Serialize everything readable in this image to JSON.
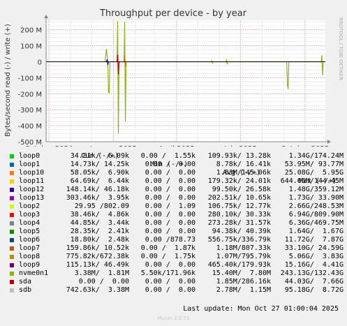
{
  "chart_data": {
    "type": "line",
    "title": "Throughput per device - by year",
    "ylabel": "Bytes/second read (-) / write (+)",
    "side_label": "RRDTOOL / TOBI OETIKER",
    "ylim": [
      -500000000,
      260000000
    ],
    "yticks": [
      {
        "v": 200000000,
        "label": "200 M"
      },
      {
        "v": 100000000,
        "label": "100 M"
      },
      {
        "v": 0,
        "label": "0"
      },
      {
        "v": -100000000,
        "label": "-100 M"
      },
      {
        "v": -200000000,
        "label": "-200 M"
      },
      {
        "v": -300000000,
        "label": "-300 M"
      },
      {
        "v": -400000000,
        "label": "-400 M"
      },
      {
        "v": -500000000,
        "label": "-500 M"
      }
    ],
    "x_range": [
      "2024-09-27",
      "2025-10-30"
    ],
    "xticks": [
      {
        "date": "2024-10-01",
        "label": "October 2024"
      },
      {
        "date": "2025-01-01",
        "label": "January 2025"
      },
      {
        "date": "2025-04-01",
        "label": "April 2025"
      },
      {
        "date": "2025-07-01",
        "label": "July 2025"
      },
      {
        "date": "2025-10-01",
        "label": "October 2025"
      }
    ],
    "grid": true,
    "series": [
      {
        "name": "nvme0n1",
        "color": "#8fb31d",
        "points": [
          [
            "2024-12-20",
            0
          ],
          [
            "2024-12-22",
            80000000
          ],
          [
            "2024-12-24",
            0
          ],
          [
            "2024-12-25",
            -190000000
          ],
          [
            "2024-12-26",
            -195000000
          ],
          [
            "2024-12-27",
            0
          ],
          [
            "2025-01-06",
            0
          ],
          [
            "2025-01-07",
            255000000
          ],
          [
            "2025-01-08",
            -450000000
          ],
          [
            "2025-01-09",
            0
          ],
          [
            "2025-01-16",
            0
          ],
          [
            "2025-01-17",
            250000000
          ],
          [
            "2025-01-18",
            -375000000
          ],
          [
            "2025-01-19",
            0
          ],
          [
            "2025-05-20",
            0
          ],
          [
            "2025-05-21",
            6000000
          ],
          [
            "2025-05-22",
            -8000000
          ],
          [
            "2025-05-23",
            0
          ],
          [
            "2025-06-10",
            0
          ],
          [
            "2025-06-11",
            12000000
          ],
          [
            "2025-06-12",
            -15000000
          ],
          [
            "2025-06-13",
            0
          ],
          [
            "2025-09-05",
            0
          ],
          [
            "2025-09-06",
            -145000000
          ],
          [
            "2025-09-07",
            -170000000
          ],
          [
            "2025-09-08",
            0
          ],
          [
            "2025-10-24",
            0
          ],
          [
            "2025-10-25",
            40000000
          ],
          [
            "2025-10-26",
            -85000000
          ],
          [
            "2025-10-27",
            0
          ]
        ]
      },
      {
        "name": "loop3",
        "color": "#cc0000",
        "points": [
          [
            "2025-01-06",
            0
          ],
          [
            "2025-01-07",
            45000000
          ],
          [
            "2025-01-08",
            -80000000
          ],
          [
            "2025-01-09",
            0
          ]
        ]
      },
      {
        "name": "loop8",
        "color": "#cc7a00",
        "points": [
          [
            "2025-01-16",
            0
          ],
          [
            "2025-01-17",
            40000000
          ],
          [
            "2025-01-18",
            -30000000
          ],
          [
            "2025-01-19",
            0
          ]
        ]
      },
      {
        "name": "loop12",
        "color": "#1a00cc",
        "points": [
          [
            "2024-12-22",
            0
          ],
          [
            "2024-12-23",
            15000000
          ],
          [
            "2024-12-24",
            -20000000
          ],
          [
            "2024-12-25",
            0
          ]
        ]
      }
    ]
  },
  "legend": {
    "headers": {
      "cur": "Cur (-/+)",
      "min": "Min (-/+)",
      "avg": "Avg (-/+)",
      "max": "Max (-/+)"
    },
    "rows": [
      {
        "name": "loop0",
        "color": "#00cc00",
        "cur": "34.81k/  6.09k",
        "min": "0.00 /  1.55k",
        "avg": "109.93k/ 13.28k",
        "max": "1.34G/174.24M"
      },
      {
        "name": "loop1",
        "color": "#0066b3",
        "cur": "14.73k/ 14.25k",
        "min": "0.00 /  0.00",
        "avg": "8.78k/ 16.41k",
        "max": "53.95M/ 93.77M"
      },
      {
        "name": "loop10",
        "color": "#ff8000",
        "cur": "58.05k/  6.90k",
        "min": "0.00 /  0.00",
        "avg": "1.63M/145.06k",
        "max": "25.08G/  5.95G"
      },
      {
        "name": "loop11",
        "color": "#ffcc00",
        "cur": "64.69k/  6.44k",
        "min": "0.00 /  0.00",
        "avg": "179.32k/ 24.01k",
        "max": "644.66M/144.45M"
      },
      {
        "name": "loop12",
        "color": "#330099",
        "cur": "148.14k/ 46.18k",
        "min": "0.00 /  0.00",
        "avg": "99.50k/ 26.58k",
        "max": "1.48G/359.12M"
      },
      {
        "name": "loop13",
        "color": "#990099",
        "cur": "303.46k/  3.95k",
        "min": "0.00 /  0.00",
        "avg": "202.51k/ 10.65k",
        "max": "1.73G/ 33.90M"
      },
      {
        "name": "loop2",
        "color": "#ccff00",
        "cur": "29.95 /802.09",
        "min": "0.00 /  1.09",
        "avg": "106.75k/ 12.77k",
        "max": "2.66G/248.53M"
      },
      {
        "name": "loop3",
        "color": "#ff0000",
        "cur": "38.46k/  4.86k",
        "min": "0.00 /  0.00",
        "avg": "280.10k/ 30.33k",
        "max": "6.94G/809.90M"
      },
      {
        "name": "loop4",
        "color": "#808080",
        "cur": "44.85k/  3.44k",
        "min": "0.00 /  0.00",
        "avg": "273.28k/ 31.57k",
        "max": "6.36G/469.75M"
      },
      {
        "name": "loop5",
        "color": "#008f00",
        "cur": "28.35k/  2.41k",
        "min": "0.00 /  0.00",
        "avg": "94.38k/ 40.39k",
        "max": "1.64G/  1.67G"
      },
      {
        "name": "loop6",
        "color": "#00487d",
        "cur": "18.80k/  2.48k",
        "min": "0.00 /878.73",
        "avg": "556.75k/336.79k",
        "max": "11.72G/  7.87G"
      },
      {
        "name": "loop7",
        "color": "#b35a00",
        "cur": "159.86k/ 10.52k",
        "min": "0.00 /  1.87k",
        "avg": "1.18M/807.33k",
        "max": "33.10G/ 24.59G"
      },
      {
        "name": "loop8",
        "color": "#b38f00",
        "cur": "775.82k/672.38k",
        "min": "0.00 /  1.75k",
        "avg": "1.07M/795.79k",
        "max": "5.06G/  3.83G"
      },
      {
        "name": "loop9",
        "color": "#6b006b",
        "cur": "115.13k/ 46.49k",
        "min": "0.00 /  0.00",
        "avg": "465.40k/179.93k",
        "max": "15.16G/  4.41G"
      },
      {
        "name": "nvme0n1",
        "color": "#8fb300",
        "cur": "3.38M/  1.81M",
        "min": "5.50k/171.96k",
        "avg": "15.40M/  7.80M",
        "max": "243.13G/132.43G"
      },
      {
        "name": "sda",
        "color": "#b30000",
        "cur": "0.00 /  0.00",
        "min": "0.00 /  0.00",
        "avg": "1.85M/286.16k",
        "max": "44.03G/  7.66G"
      },
      {
        "name": "sdb",
        "color": "#bebebe",
        "cur": "742.63k/  3.38M",
        "min": "0.00 /  0.00",
        "avg": "2.78M/  1.15M",
        "max": "95.18G/  8.72G"
      }
    ]
  },
  "footer": {
    "last_update": "Last update: Mon Oct 27 01:00:04 2025",
    "munin": "Munin 2.0.73"
  }
}
